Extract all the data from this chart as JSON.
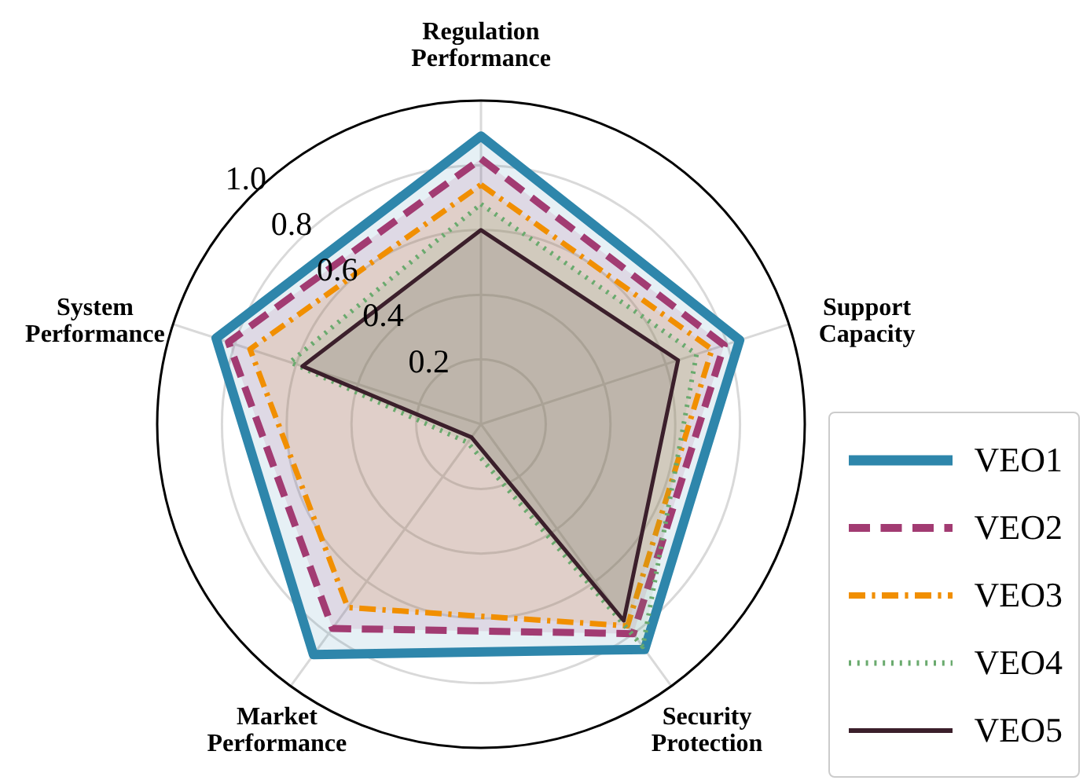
{
  "chart_data": {
    "type": "radar",
    "categories": [
      "Regulation Performance",
      "Support Capacity",
      "Security Protection",
      "Market Performance",
      "System Performance"
    ],
    "series": [
      {
        "name": "VEO1",
        "color": "#2e86ab",
        "line_style": "solid",
        "values": [
          0.89,
          0.84,
          0.86,
          0.88,
          0.86
        ]
      },
      {
        "name": "VEO2",
        "color": "#a23b72",
        "line_style": "dashed",
        "values": [
          0.82,
          0.79,
          0.8,
          0.78,
          0.82
        ]
      },
      {
        "name": "VEO3",
        "color": "#f18f01",
        "line_style": "dashdot",
        "values": [
          0.74,
          0.75,
          0.77,
          0.7,
          0.75
        ]
      },
      {
        "name": "VEO4",
        "color": "#6aaa6e",
        "line_style": "dotted",
        "values": [
          0.68,
          0.7,
          0.85,
          0.07,
          0.62
        ]
      },
      {
        "name": "VEO5",
        "color": "#3b1f2b",
        "line_style": "solid",
        "values": [
          0.6,
          0.64,
          0.75,
          0.05,
          0.58
        ]
      }
    ],
    "ylim": [
      0,
      1
    ],
    "yticks": [
      0.2,
      0.4,
      0.6,
      0.8,
      {
        "value": 1,
        "label": "1.0"
      }
    ],
    "grid": true,
    "legend": "bottom right",
    "marker": "none"
  }
}
